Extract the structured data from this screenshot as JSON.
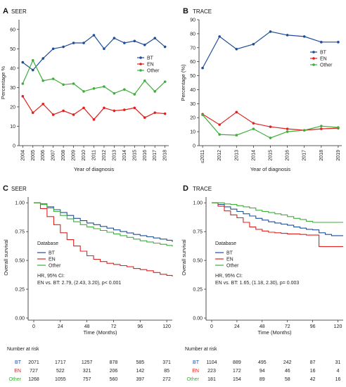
{
  "colors": {
    "BT": "#1f4e99",
    "EN": "#e0211f",
    "Other": "#3fae3a"
  },
  "chart_data": [
    {
      "id": "A",
      "letter": "A",
      "title": "SEER",
      "type": "line",
      "xlabel": "Year of diagnosis",
      "ylabel": "Percentage %",
      "categories": [
        "2004",
        "2005",
        "2006",
        "2007",
        "2008",
        "2009",
        "2010",
        "2011",
        "2012",
        "2013",
        "2014",
        "2015",
        "2016",
        "2017",
        "2018"
      ],
      "ylim": [
        0,
        65
      ],
      "yticks": [
        0,
        10,
        20,
        30,
        40,
        50,
        60
      ],
      "legend_position": "right",
      "series": [
        {
          "name": "BT",
          "key": "BT",
          "values": [
            43,
            39,
            45,
            50,
            51,
            53,
            53,
            57,
            50,
            55.5,
            53,
            54,
            52,
            55.5,
            51
          ]
        },
        {
          "name": "EN",
          "key": "EN",
          "values": [
            25.5,
            17,
            21.5,
            16,
            18,
            16,
            19.5,
            13.5,
            19.5,
            18,
            18.5,
            19.5,
            14.5,
            17,
            16.5
          ]
        },
        {
          "name": "Other",
          "key": "Other",
          "values": [
            32,
            44,
            33.5,
            34.5,
            31.5,
            32,
            28,
            29.5,
            30.5,
            27,
            29,
            26.5,
            33.5,
            28,
            33
          ]
        }
      ]
    },
    {
      "id": "B",
      "letter": "B",
      "title": "TRACE",
      "type": "line",
      "xlabel": "Year of diagnosis",
      "ylabel": "Percentage (%)",
      "categories": [
        "≤2011",
        "2012",
        "2013",
        "2014",
        "2015",
        "2016",
        "2017",
        "2018",
        "2019"
      ],
      "ylim": [
        0,
        90
      ],
      "yticks": [
        0,
        10,
        20,
        30,
        40,
        50,
        60,
        70,
        80,
        90
      ],
      "legend_position": "right",
      "series": [
        {
          "name": "BT",
          "key": "BT",
          "values": [
            55.5,
            78,
            69,
            72.5,
            81.5,
            79,
            78,
            74,
            74
          ]
        },
        {
          "name": "EN",
          "key": "EN",
          "values": [
            22.5,
            15,
            24,
            16,
            13.5,
            12,
            11,
            12,
            12.5
          ]
        },
        {
          "name": "Other",
          "key": "Other",
          "values": [
            22,
            8,
            7.5,
            12,
            5.5,
            10,
            11,
            14,
            13
          ]
        }
      ]
    },
    {
      "id": "C",
      "letter": "C",
      "title": "SEER",
      "type": "line",
      "xlabel": "Time (Months)",
      "ylabel": "Overall survival",
      "xlim": [
        0,
        125
      ],
      "xticks": [
        0,
        24,
        48,
        72,
        96,
        120
      ],
      "ylim": [
        0,
        1.05
      ],
      "yticks": [
        0.0,
        0.25,
        0.5,
        0.75,
        1.0
      ],
      "legend_title": "Database",
      "annotation": [
        "HR, 95% CI:",
        "EN vs. BT: 2.79, (2.43, 3.20), p< 0.001"
      ],
      "series": [
        {
          "name": "BT",
          "key": "BT",
          "x": [
            0,
            6,
            12,
            18,
            24,
            30,
            36,
            42,
            48,
            54,
            60,
            66,
            72,
            78,
            84,
            90,
            96,
            102,
            108,
            114,
            120,
            125
          ],
          "y": [
            1,
            0.99,
            0.965,
            0.94,
            0.915,
            0.89,
            0.865,
            0.845,
            0.825,
            0.81,
            0.795,
            0.78,
            0.765,
            0.75,
            0.738,
            0.725,
            0.715,
            0.705,
            0.695,
            0.685,
            0.675,
            0.66
          ]
        },
        {
          "name": "EN",
          "key": "EN",
          "x": [
            0,
            6,
            12,
            18,
            24,
            30,
            36,
            42,
            48,
            54,
            60,
            66,
            72,
            78,
            84,
            90,
            96,
            102,
            108,
            114,
            120,
            125
          ],
          "y": [
            1,
            0.95,
            0.88,
            0.81,
            0.74,
            0.68,
            0.625,
            0.58,
            0.54,
            0.51,
            0.49,
            0.475,
            0.465,
            0.455,
            0.445,
            0.43,
            0.42,
            0.41,
            0.395,
            0.38,
            0.37,
            0.36
          ]
        },
        {
          "name": "Other",
          "key": "Other",
          "x": [
            0,
            6,
            12,
            18,
            24,
            30,
            36,
            42,
            48,
            54,
            60,
            66,
            72,
            78,
            84,
            90,
            96,
            102,
            108,
            114,
            120,
            125
          ],
          "y": [
            1,
            0.985,
            0.955,
            0.925,
            0.89,
            0.86,
            0.835,
            0.81,
            0.79,
            0.775,
            0.76,
            0.745,
            0.73,
            0.715,
            0.7,
            0.685,
            0.67,
            0.66,
            0.65,
            0.64,
            0.63,
            0.62
          ]
        }
      ],
      "risk_table": {
        "title": "Number at risk",
        "rows": [
          {
            "label": "BT",
            "key": "BT",
            "values": [
              "2071",
              "1717",
              "1257",
              "878",
              "585",
              "371"
            ]
          },
          {
            "label": "EN",
            "key": "EN",
            "values": [
              "727",
              "522",
              "321",
              "206",
              "142",
              "85"
            ]
          },
          {
            "label": "Other",
            "key": "Other",
            "values": [
              "1268",
              "1055",
              "757",
              "560",
              "397",
              "272"
            ]
          }
        ]
      }
    },
    {
      "id": "D",
      "letter": "D",
      "title": "TRACE",
      "type": "line",
      "xlabel": "Time (Months)",
      "ylabel": "Overall survival",
      "xlim": [
        0,
        125
      ],
      "xticks": [
        0,
        24,
        48,
        72,
        96,
        120
      ],
      "ylim": [
        0,
        1.05
      ],
      "yticks": [
        0.0,
        0.25,
        0.5,
        0.75,
        1.0
      ],
      "legend_title": "Database",
      "annotation": [
        "HR, 95% CI:",
        "EN vs. BT: 1.65, (1.18, 2.30), p= 0.003"
      ],
      "series": [
        {
          "name": "BT",
          "key": "BT",
          "x": [
            0,
            6,
            12,
            18,
            24,
            30,
            36,
            42,
            48,
            54,
            60,
            66,
            72,
            78,
            84,
            90,
            96,
            102,
            108,
            114,
            120,
            125
          ],
          "y": [
            1,
            0.985,
            0.965,
            0.945,
            0.925,
            0.905,
            0.885,
            0.865,
            0.85,
            0.835,
            0.825,
            0.815,
            0.805,
            0.79,
            0.78,
            0.77,
            0.765,
            0.74,
            0.725,
            0.715,
            0.715,
            0.715
          ]
        },
        {
          "name": "EN",
          "key": "EN",
          "x": [
            0,
            6,
            12,
            18,
            24,
            30,
            36,
            42,
            48,
            54,
            60,
            66,
            72,
            78,
            84,
            90,
            96,
            102,
            108,
            114,
            120,
            125
          ],
          "y": [
            1,
            0.97,
            0.93,
            0.895,
            0.87,
            0.83,
            0.79,
            0.77,
            0.755,
            0.745,
            0.74,
            0.735,
            0.73,
            0.73,
            0.725,
            0.72,
            0.72,
            0.62,
            0.62,
            0.62,
            0.62,
            0.62
          ]
        },
        {
          "name": "Other",
          "key": "Other",
          "x": [
            0,
            6,
            12,
            18,
            24,
            30,
            36,
            42,
            48,
            54,
            60,
            66,
            72,
            78,
            84,
            90,
            96,
            102,
            108,
            114,
            120,
            125
          ],
          "y": [
            1,
            1,
            0.99,
            0.985,
            0.975,
            0.965,
            0.955,
            0.935,
            0.925,
            0.915,
            0.905,
            0.895,
            0.88,
            0.865,
            0.855,
            0.84,
            0.83,
            0.83,
            0.83,
            0.83,
            0.83,
            0.83
          ]
        }
      ],
      "risk_table": {
        "title": "Number at risk",
        "rows": [
          {
            "label": "BT",
            "key": "BT",
            "values": [
              "1104",
              "889",
              "495",
              "242",
              "87",
              "31"
            ]
          },
          {
            "label": "EN",
            "key": "EN",
            "values": [
              "223",
              "172",
              "94",
              "46",
              "16",
              "4"
            ]
          },
          {
            "label": "Other",
            "key": "Other",
            "values": [
              "181",
              "154",
              "89",
              "58",
              "42",
              "16"
            ]
          }
        ]
      }
    }
  ]
}
